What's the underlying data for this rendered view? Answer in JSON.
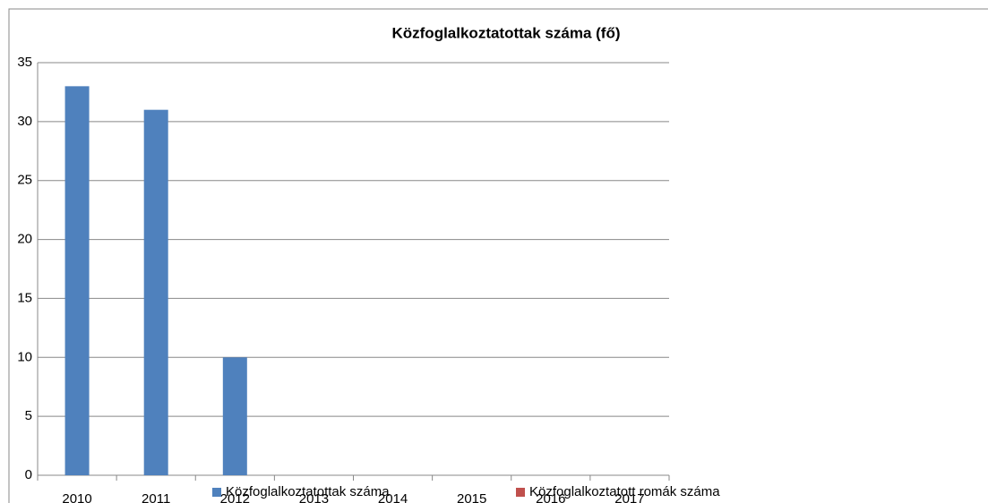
{
  "chart_data": {
    "type": "bar",
    "title": "Közfoglalkoztatottak száma (fő)",
    "categories": [
      "2010",
      "2011",
      "2012",
      "2013",
      "2014",
      "2015",
      "2016",
      "2017"
    ],
    "series": [
      {
        "name": "Közfoglalkoztatottak száma",
        "color": "#4f81bd",
        "values": [
          33,
          31,
          10,
          null,
          null,
          null,
          null,
          null
        ]
      },
      {
        "name": "Közfoglalkoztatott romák száma",
        "color": "#c0504d",
        "values": [
          null,
          null,
          null,
          null,
          null,
          null,
          null,
          null
        ]
      }
    ],
    "ylim": [
      0,
      35
    ],
    "yticks": [
      0,
      5,
      10,
      15,
      20,
      25,
      30,
      35
    ],
    "grid": true,
    "legend": "bottom"
  }
}
